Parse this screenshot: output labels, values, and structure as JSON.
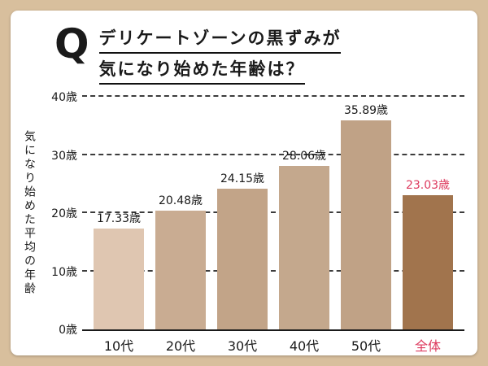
{
  "title": {
    "q": "Q",
    "line1": "デリケートゾーンの黒ずみが",
    "line2": "気になり始めた年齢は？"
  },
  "chart_data": {
    "type": "bar",
    "title": "デリケートゾーンの黒ずみが気になり始めた年齢は？",
    "ylabel": "気になり始めた平均の年齢",
    "xlabel": "",
    "categories": [
      "10代",
      "20代",
      "30代",
      "40代",
      "50代",
      "全体"
    ],
    "values": [
      17.33,
      20.48,
      24.15,
      28.06,
      35.89,
      23.03
    ],
    "value_labels": [
      "17.33歳",
      "20.48歳",
      "24.15歳",
      "28.06歳",
      "35.89歳",
      "23.03歳"
    ],
    "y_ticks": [
      "0歳",
      "10歳",
      "20歳",
      "30歳",
      "40歳"
    ],
    "ylim": [
      0,
      40
    ],
    "grid": "dashed-horizontal",
    "legend": "none",
    "bar_colors": [
      "#dfc6b1",
      "#c9ac92",
      "#c2a488",
      "#c4a88d",
      "#c0a286",
      "#a1744d"
    ],
    "highlight_index": 5,
    "highlight_color": "#dd3a5e"
  },
  "colors": {
    "background": "#d8bf9d",
    "card": "#ffffff",
    "axis": "#1a1a1a"
  }
}
